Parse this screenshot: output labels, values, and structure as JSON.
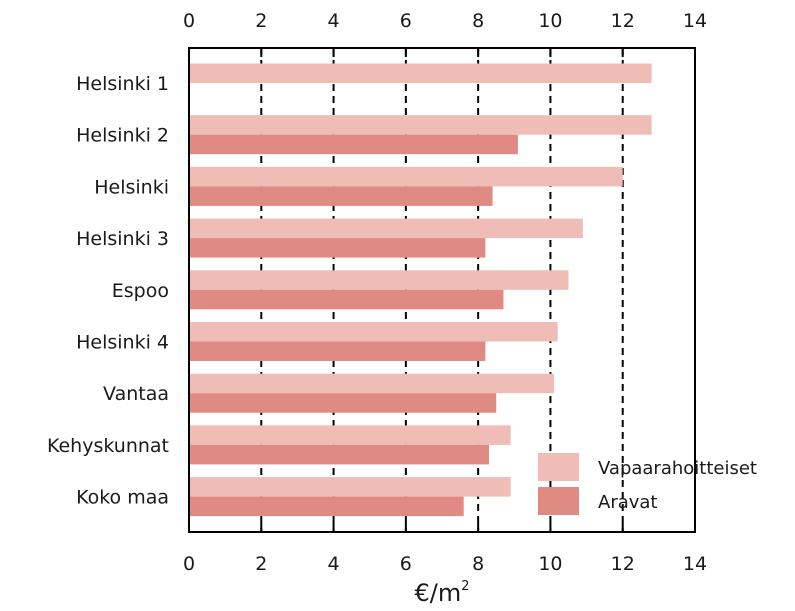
{
  "chart_data": {
    "type": "bar",
    "orientation": "horizontal",
    "categories": [
      "Helsinki 1",
      "Helsinki 2",
      "Helsinki",
      "Helsinki 3",
      "Espoo",
      "Helsinki 4",
      "Vantaa",
      "Kehyskunnat",
      "Koko maa"
    ],
    "series": [
      {
        "name": "Vapaarahoitteiset",
        "color": "#efbdb6",
        "values": [
          12.8,
          12.8,
          12.0,
          10.9,
          10.5,
          10.2,
          10.1,
          8.9,
          8.9
        ]
      },
      {
        "name": "Aravat",
        "color": "#e08a84",
        "values": [
          null,
          9.1,
          8.4,
          8.2,
          8.7,
          8.2,
          8.5,
          8.3,
          7.6
        ]
      }
    ],
    "xlim": [
      0,
      14
    ],
    "xticks": [
      "0",
      "2",
      "4",
      "6",
      "8",
      "10",
      "12",
      "14"
    ],
    "xlabel_unit": "€/m",
    "xlabel_superscript": "2",
    "grid": "vertical dashed at x = 2, 4, 6, 8, 10, 12",
    "legend_position": "bottom-right"
  }
}
